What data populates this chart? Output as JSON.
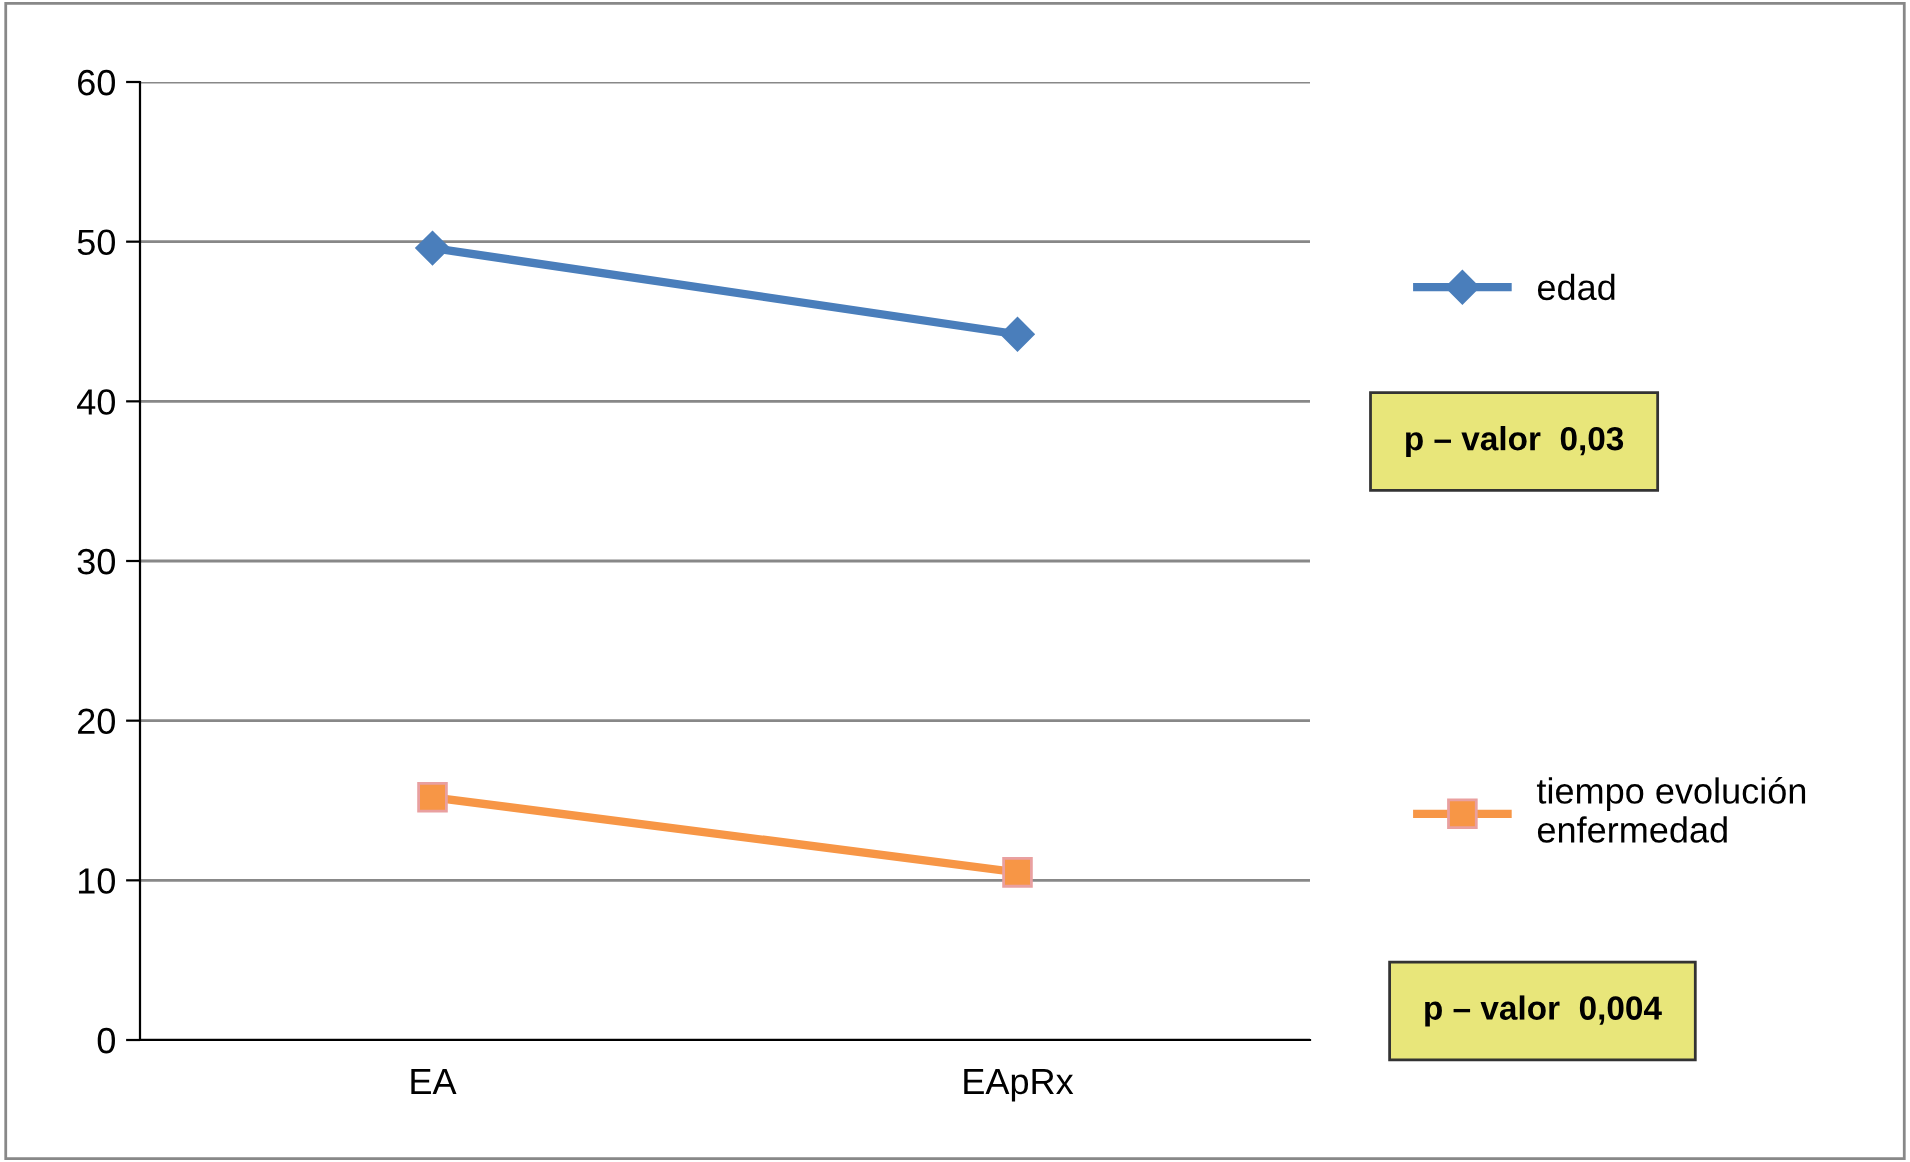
{
  "chart_data": {
    "type": "line",
    "categories": [
      "EA",
      "EApRx"
    ],
    "series": [
      {
        "name": "edad",
        "color": "#4a7ebb",
        "values": [
          49.6,
          44.2
        ],
        "marker": "diamond"
      },
      {
        "name": "tiempo evolución\nenfermedad",
        "color": "#f79646",
        "values": [
          15.2,
          10.5
        ],
        "marker": "square"
      }
    ],
    "ylim": [
      0,
      60
    ],
    "yticks": [
      0,
      10,
      20,
      30,
      40,
      50,
      60
    ],
    "grid": "y",
    "legend": "right",
    "annotations": [
      "p – valor  0,03",
      "p – valor  0,004"
    ]
  }
}
